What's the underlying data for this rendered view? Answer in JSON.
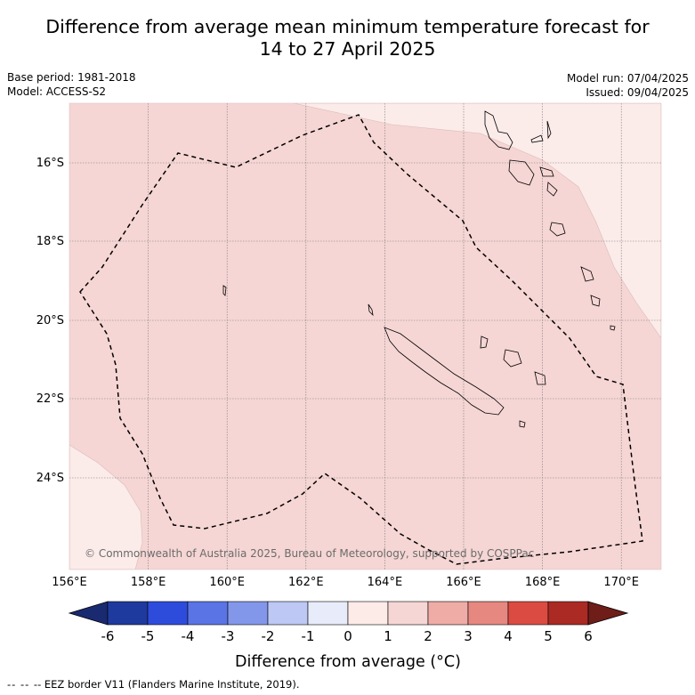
{
  "title_line1": "Difference from average mean minimum temperature forecast for",
  "title_line2": "14 to 27 April 2025",
  "base_period": "Base period: 1981-2018",
  "model": "Model: ACCESS-S2",
  "model_run": "Model run: 07/04/2025",
  "issued": "Issued: 09/04/2025",
  "latitude_labels": [
    "16°S",
    "18°S",
    "20°S",
    "22°S",
    "24°S"
  ],
  "longitude_labels": [
    "156°E",
    "158°E",
    "160°E",
    "162°E",
    "164°E",
    "166°E",
    "168°E",
    "170°E"
  ],
  "copyright": "© Commonwealth of Australia 2025, Bureau of Meteorology, supported by COSPPac",
  "colorbar": {
    "title": "Difference from average (°C)",
    "ticks": [
      "-6",
      "-5",
      "-4",
      "-3",
      "-2",
      "-1",
      "0",
      "1",
      "2",
      "3",
      "4",
      "5",
      "6"
    ],
    "colors": [
      "#1f3a9e",
      "#2e4cdc",
      "#5a74e6",
      "#8397ea",
      "#bec8f5",
      "#e7ebfa",
      "#fdebe8",
      "#f6d6d4",
      "#efaca6",
      "#e78880",
      "#dc4b41",
      "#ab2a24"
    ],
    "under_color": "#1a2a70",
    "over_color": "#6e1d19"
  },
  "map_fill": {
    "main": "#f5d6d4",
    "light": "#fbebe9"
  },
  "footer_legend": "-- EEZ border V11 (Flanders Marine Institute, 2019)."
}
